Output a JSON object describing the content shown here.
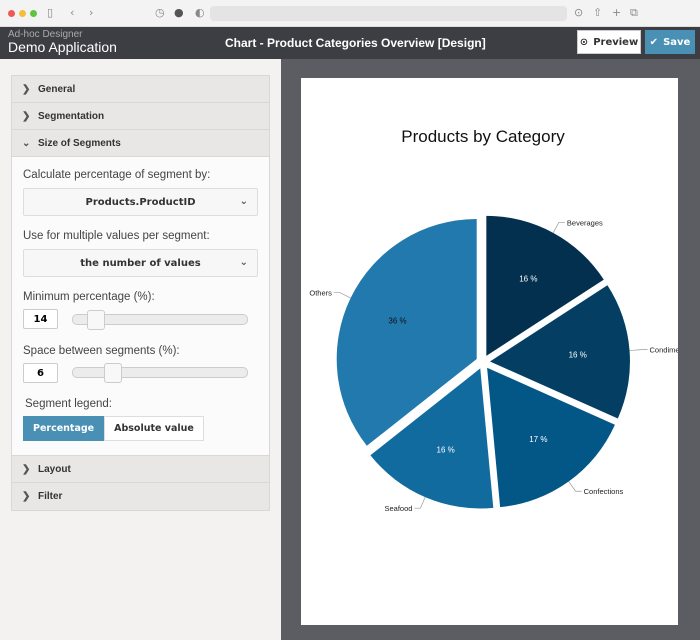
{
  "browser": {
    "icons": [
      "sidebar-icon",
      "back-icon",
      "forward-icon",
      "history-icon",
      "adblock-icon",
      "shield-icon",
      "download-icon",
      "share-icon",
      "new-tab-icon",
      "tabs-icon"
    ]
  },
  "app": {
    "subtitle": "Ad-hoc Designer",
    "name": "Demo Application",
    "title": "Chart - Product Categories Overview [Design]",
    "preview_label": "Preview",
    "save_label": "Save",
    "save_color": "#4a90b5"
  },
  "sidebar": {
    "sections": [
      {
        "label": "General"
      },
      {
        "label": "Segmentation"
      },
      {
        "label": "Size of Segments"
      },
      {
        "label": "Layout"
      },
      {
        "label": "Filter"
      }
    ],
    "size": {
      "calc_label": "Calculate percentage of segment by:",
      "calc_value": "Products.ProductID",
      "multi_label": "Use for multiple values per segment:",
      "multi_value": "the number of values",
      "min_label": "Minimum percentage (%):",
      "min_value": "14",
      "space_label": "Space between segments (%):",
      "space_value": "6",
      "legend_label": "Segment legend:",
      "legend_options": [
        "Percentage",
        "Absolute value"
      ],
      "legend_selected": "Percentage"
    }
  },
  "chart_data": {
    "type": "pie",
    "title": "Products by Category",
    "categories": [
      "Beverages",
      "Condiments",
      "Confections",
      "Seafood",
      "Others"
    ],
    "values": [
      16,
      16,
      17,
      16,
      36
    ],
    "data_labels": [
      "16 %",
      "16 %",
      "17 %",
      "16 %",
      "36 %"
    ],
    "colors": [
      "#02304e",
      "#043f63",
      "#035786",
      "#116b9f",
      "#2179ad"
    ],
    "exploded": true
  }
}
